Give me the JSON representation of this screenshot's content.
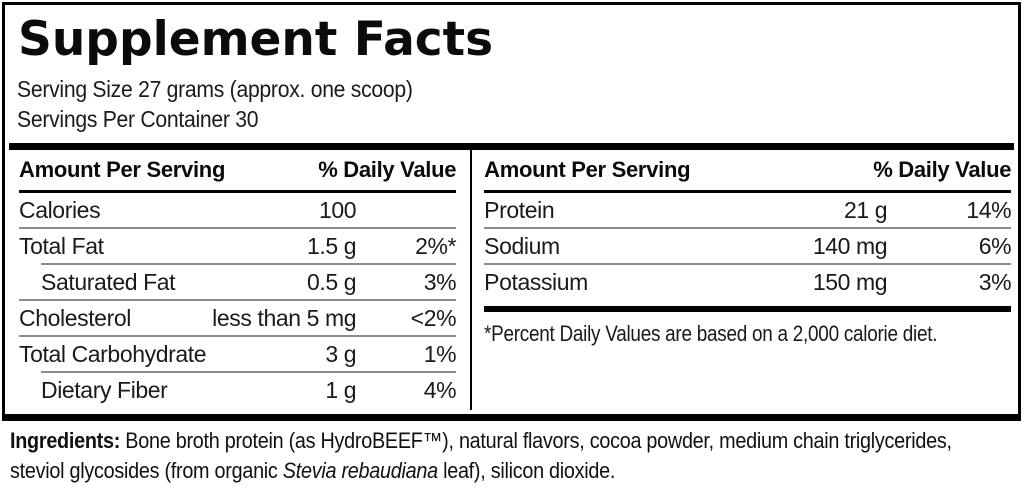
{
  "panel": {
    "title": "Supplement Facts",
    "serving_size": "Serving Size 27 grams (approx. one scoop)",
    "servings_per_container": "Servings Per Container 30",
    "columns": [
      {
        "header": {
          "amount": "Amount Per Serving",
          "dv": "% Daily Value"
        },
        "rows": [
          {
            "name": "Calories",
            "amount": "100",
            "dv": ""
          },
          {
            "name": "Total Fat",
            "amount": "1.5 g",
            "dv": "2%*"
          },
          {
            "name": "Saturated Fat",
            "amount": "0.5 g",
            "dv": "3%"
          },
          {
            "name": "Cholesterol",
            "amount": "less than 5 mg",
            "dv": "<2%"
          },
          {
            "name": "Total Carbohydrate",
            "amount": "3 g",
            "dv": "1%"
          },
          {
            "name": "Dietary Fiber",
            "amount": "1 g",
            "dv": "4%"
          }
        ]
      },
      {
        "header": {
          "amount": "Amount Per Serving",
          "dv": "% Daily Value"
        },
        "rows": [
          {
            "name": "Protein",
            "amount": "21 g",
            "dv": "14%"
          },
          {
            "name": "Sodium",
            "amount": "140 mg",
            "dv": "6%"
          },
          {
            "name": "Potassium",
            "amount": "150 mg",
            "dv": "3%"
          }
        ],
        "footnote": "*Percent Daily Values are based on a 2,000 calorie diet."
      }
    ]
  },
  "ingredients": {
    "label": "Ingredients:",
    "line1_rest": " Bone broth protein (as HydroBEEF™), natural flavors, cocoa powder, medium chain triglycerides,",
    "line2_pre": "steviol glycosides (from organic ",
    "line2_italic": "Stevia rebaudiana",
    "line2_post": " leaf), silicon dioxide."
  },
  "colors": {
    "text": "#111111",
    "border": "#000000",
    "separator": "#8c8c8c",
    "background": "#ffffff"
  }
}
